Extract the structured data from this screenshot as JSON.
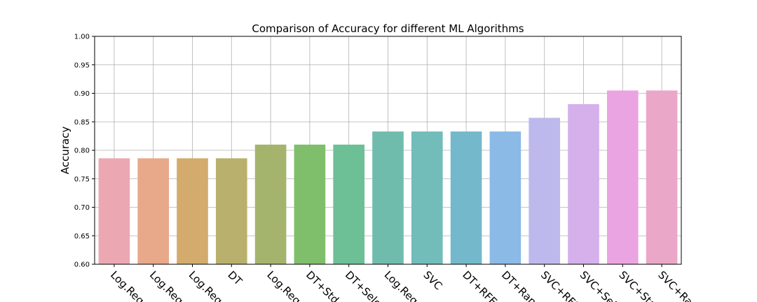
{
  "chart_data": {
    "type": "bar",
    "title": "Comparison of Accuracy for different ML Algorithms",
    "xlabel": "",
    "ylabel": "Accuracy",
    "ylim": [
      0.6,
      1.0
    ],
    "yticks": [
      "0.60",
      "0.65",
      "0.70",
      "0.75",
      "0.80",
      "0.85",
      "0.90",
      "0.95",
      "1.00"
    ],
    "grid": true,
    "categories": [
      "Log.Reg",
      "Log.Reg",
      "Log.Reg",
      "DT",
      "Log.Reg",
      "DT+Std",
      "DT+Sele",
      "Log.Reg",
      "SVC",
      "DT+RFE",
      "DT+Ran",
      "SVC+RFE",
      "SVC+Sel",
      "SVC+Sta",
      "SVC+Ra"
    ],
    "values": [
      0.786,
      0.786,
      0.786,
      0.786,
      0.81,
      0.81,
      0.81,
      0.833,
      0.833,
      0.833,
      0.833,
      0.857,
      0.881,
      0.905,
      0.905
    ],
    "colors": [
      "#eba8b2",
      "#e8a88a",
      "#d3ab6c",
      "#bab06d",
      "#a4b46d",
      "#7fbe6b",
      "#6dbf96",
      "#6fbcad",
      "#72bcb9",
      "#73b9cb",
      "#8bbae6",
      "#bdb9ec",
      "#d5b0ea",
      "#eba4e2",
      "#eaa7c8"
    ]
  }
}
